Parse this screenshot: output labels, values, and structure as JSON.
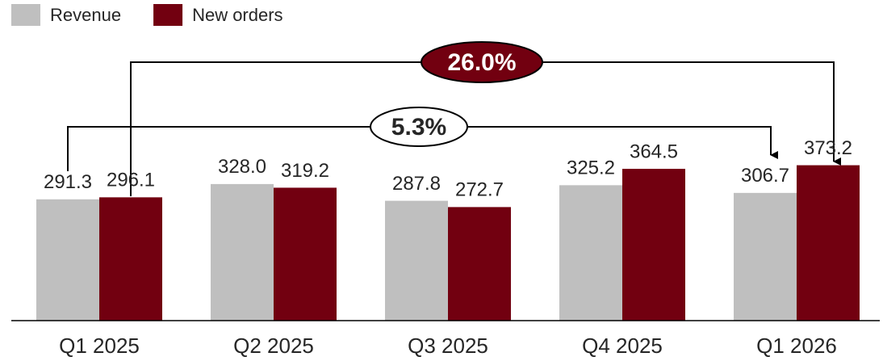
{
  "chart_data": {
    "type": "bar",
    "categories": [
      "Q1 2025",
      "Q2 2025",
      "Q3 2025",
      "Q4 2025",
      "Q1 2026"
    ],
    "series": [
      {
        "name": "Revenue",
        "color": "#bfbfbf",
        "values": [
          291.3,
          328.0,
          287.8,
          325.2,
          306.7
        ],
        "value_labels": [
          "291.3",
          "328.0",
          "287.8",
          "325.2",
          "306.7"
        ]
      },
      {
        "name": "New orders",
        "color": "#720010",
        "values": [
          296.1,
          319.2,
          272.7,
          364.5,
          373.2
        ],
        "value_labels": [
          "296.1",
          "319.2",
          "272.7",
          "364.5",
          "373.2"
        ]
      }
    ],
    "ylim": [
      0,
      770
    ],
    "annotations": [
      "26.0%",
      "5.3%"
    ]
  }
}
